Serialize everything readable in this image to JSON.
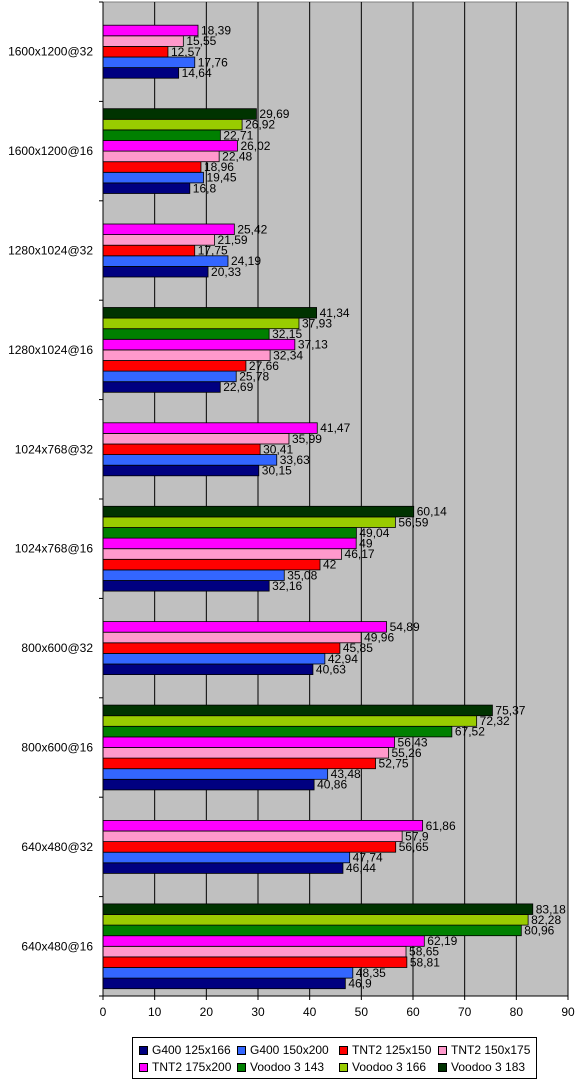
{
  "chart_data": {
    "type": "bar",
    "orientation": "horizontal",
    "title": "",
    "xlabel": "",
    "ylabel": "",
    "xlim": [
      0,
      90
    ],
    "x_ticks": [
      0,
      10,
      20,
      30,
      40,
      50,
      60,
      70,
      80,
      90
    ],
    "grid": "vertical",
    "legend_position": "bottom",
    "background_color": "#c0c0c0",
    "categories": [
      "1600x1200@32",
      "1600x1200@16",
      "1280x1024@32",
      "1280x1024@16",
      "1024x768@32",
      "1024x768@16",
      "800x600@32",
      "800x600@16",
      "640x480@32",
      "640x480@16"
    ],
    "value_labels": {
      "G400 125x166": [
        "14,64",
        "16,8",
        "20,33",
        "22,69",
        "30,15",
        "32,16",
        "40,63",
        "40,86",
        "46,44",
        "46,9"
      ],
      "G400 150x200": [
        "17,76",
        "19,45",
        "24,19",
        "25,78",
        "33,63",
        "35,08",
        "42,94",
        "43,48",
        "47,74",
        "48,35"
      ],
      "TNT2 125x150": [
        "12,57",
        "18,96",
        "17,75",
        "27,66",
        "30,41",
        "42",
        "45,85",
        "52,75",
        "56,65",
        "58,81"
      ],
      "TNT2 150x175": [
        "15,55",
        "22,48",
        "21,59",
        "32,34",
        "35,99",
        "46,17",
        "49,96",
        "55,26",
        "57,9",
        "58,65"
      ],
      "TNT2 175x200": [
        "18,39",
        "26,02",
        "25,42",
        "37,13",
        "41,47",
        "49",
        "54,89",
        "56,43",
        "61,86",
        "62,19"
      ],
      "Voodoo 3 143": [
        "",
        "22,71",
        "",
        "32,15",
        "",
        "49,04",
        "",
        "67,52",
        "",
        "80,96"
      ],
      "Voodoo 3 166": [
        "",
        "26,92",
        "",
        "37,93",
        "",
        "56,59",
        "",
        "72,32",
        "",
        "82,28"
      ],
      "Voodoo 3 183": [
        "",
        "29,69",
        "",
        "41,34",
        "",
        "60,14",
        "",
        "75,37",
        "",
        "83,18"
      ]
    },
    "series": [
      {
        "name": "G400 125x166",
        "color": "#000080",
        "values": [
          14.64,
          16.8,
          20.33,
          22.69,
          30.15,
          32.16,
          40.63,
          40.86,
          46.44,
          46.9
        ]
      },
      {
        "name": "G400 150x200",
        "color": "#3366ff",
        "values": [
          17.76,
          19.45,
          24.19,
          25.78,
          33.63,
          35.08,
          42.94,
          43.48,
          47.74,
          48.35
        ]
      },
      {
        "name": "TNT2 125x150",
        "color": "#ff0000",
        "values": [
          12.57,
          18.96,
          17.75,
          27.66,
          30.41,
          42,
          45.85,
          52.75,
          56.65,
          58.81
        ]
      },
      {
        "name": "TNT2 150x175",
        "color": "#ff99cc",
        "values": [
          15.55,
          22.48,
          21.59,
          32.34,
          35.99,
          46.17,
          49.96,
          55.26,
          57.9,
          58.65
        ]
      },
      {
        "name": "TNT2 175x200",
        "color": "#ff00ff",
        "values": [
          18.39,
          26.02,
          25.42,
          37.13,
          41.47,
          49,
          54.89,
          56.43,
          61.86,
          62.19
        ]
      },
      {
        "name": "Voodoo 3 143",
        "color": "#008000",
        "values": [
          null,
          22.71,
          null,
          32.15,
          null,
          49.04,
          null,
          67.52,
          null,
          80.96
        ]
      },
      {
        "name": "Voodoo 3 166",
        "color": "#99cc00",
        "values": [
          null,
          26.92,
          null,
          37.93,
          null,
          56.59,
          null,
          72.32,
          null,
          82.28
        ]
      },
      {
        "name": "Voodoo 3 183",
        "color": "#003300",
        "values": [
          null,
          29.69,
          null,
          41.34,
          null,
          60.14,
          null,
          75.37,
          null,
          83.18
        ]
      }
    ]
  }
}
